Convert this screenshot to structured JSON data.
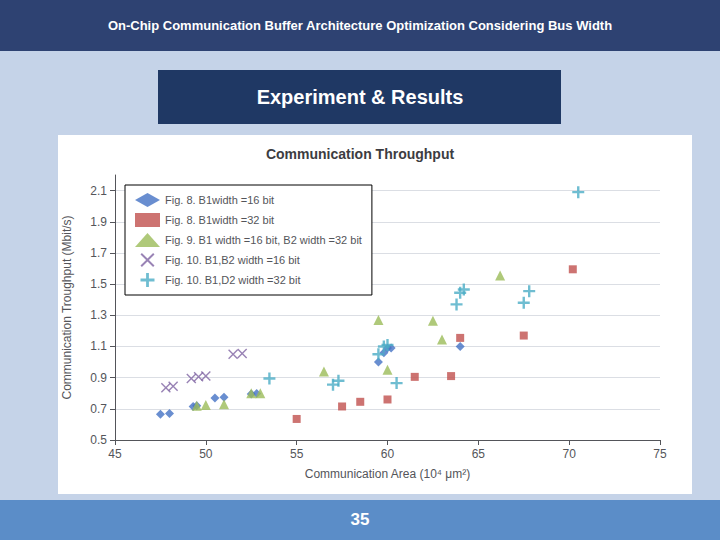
{
  "chart_data": {
    "type": "scatter",
    "title": "Communication Throughput",
    "xlabel": "Communication Area (10⁴ μm²)",
    "ylabel": "Communication Troughput (Mbit/s)",
    "annotations": [
      "On-Chip Communication Buffer Architecture Optimization Considering Bus Width",
      "Experiment & Results",
      "35"
    ],
    "xlim": [
      45,
      75
    ],
    "ylim": [
      0.5,
      2.2
    ],
    "xticks": [
      45,
      50,
      55,
      60,
      65,
      70,
      75
    ],
    "yticks": [
      0.5,
      0.7,
      0.9,
      1.1,
      1.3,
      1.5,
      1.7,
      1.9,
      2.1
    ],
    "grid": "y",
    "legend": "upper left",
    "series": [
      {
        "name": "Fig. 8. B1width =16 bit",
        "color": "#4472C4",
        "marker": "diamond",
        "x": [
          47.5,
          48.0,
          49.3,
          49.5,
          50.5,
          51.0,
          52.5,
          52.8,
          59.5,
          59.8,
          60.0,
          60.2,
          64.0
        ],
        "values": [
          0.665,
          0.67,
          0.715,
          0.72,
          0.77,
          0.775,
          0.795,
          0.798,
          1.0,
          1.06,
          1.09,
          1.09,
          1.1
        ]
      },
      {
        "name": "Fig. 8. B1width =32 bit",
        "color": "#C0504D",
        "marker": "square",
        "x": [
          55.0,
          57.5,
          58.5,
          60.0,
          61.5,
          63.5,
          64.0,
          67.5,
          70.2
        ],
        "values": [
          0.635,
          0.715,
          0.745,
          0.76,
          0.905,
          0.91,
          1.155,
          1.17,
          1.595
        ]
      },
      {
        "name": "Fig. 9. B1 width =16 bit, B2 width =32 bit",
        "color": "#9BBB59",
        "marker": "triangle",
        "x": [
          49.5,
          50.0,
          51.0,
          52.5,
          53.0,
          56.5,
          59.5,
          60.0,
          62.5,
          63.0,
          66.2
        ],
        "values": [
          0.72,
          0.725,
          0.73,
          0.8,
          0.8,
          0.94,
          1.27,
          0.95,
          1.265,
          1.145,
          1.555
        ]
      },
      {
        "name": "Fig. 10. B1,B2 width =16 bit",
        "color": "#8064A2",
        "marker": "x",
        "x": [
          47.8,
          48.2,
          49.2,
          49.6,
          50.0,
          51.5,
          52.0
        ],
        "values": [
          0.835,
          0.845,
          0.895,
          0.905,
          0.91,
          1.05,
          1.055
        ]
      },
      {
        "name": "Fig. 10. B1,D2 width =32 bit",
        "color": "#4BACC6",
        "marker": "plus",
        "x": [
          53.5,
          57.0,
          57.3,
          59.5,
          59.8,
          60.0,
          60.5,
          63.8,
          64.0,
          64.2,
          67.5,
          67.8,
          70.5
        ],
        "values": [
          0.895,
          0.855,
          0.88,
          1.05,
          1.1,
          1.11,
          0.865,
          1.37,
          1.445,
          1.465,
          1.38,
          1.455,
          2.09
        ]
      }
    ]
  }
}
